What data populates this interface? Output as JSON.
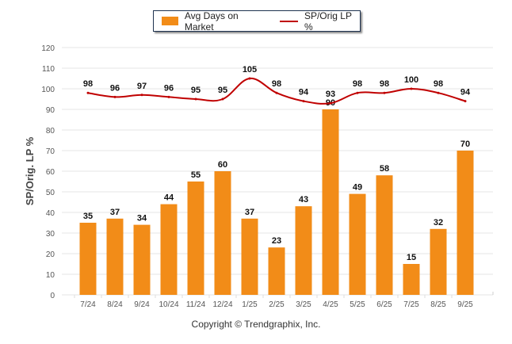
{
  "legend": {
    "bar_label": "Avg Days on Market",
    "line_label": "SP/Orig LP %"
  },
  "copyright": "Copyright © Trendgraphix, Inc.",
  "colors": {
    "bar": "#f28c18",
    "line": "#c00000",
    "grid": "#e6e6e6",
    "axis_text": "#555555"
  },
  "chart_data": {
    "type": "bar+line",
    "categories": [
      "7/24",
      "8/24",
      "9/24",
      "10/24",
      "11/24",
      "12/24",
      "1/25",
      "2/25",
      "3/25",
      "4/25",
      "5/25",
      "6/25",
      "7/25",
      "8/25",
      "9/25"
    ],
    "series": [
      {
        "name": "Avg Days on Market",
        "type": "bar",
        "values": [
          35,
          37,
          34,
          44,
          55,
          60,
          37,
          23,
          43,
          90,
          49,
          58,
          15,
          32,
          70
        ]
      },
      {
        "name": "SP/Orig LP %",
        "type": "line",
        "values": [
          98,
          96,
          97,
          96,
          95,
          95,
          105,
          98,
          94,
          93,
          98,
          98,
          100,
          98,
          94
        ]
      }
    ],
    "ylabel": "SP/Orig. LP %",
    "ylim": [
      0,
      120
    ],
    "yticks": [
      "0",
      "10",
      "20",
      "30",
      "40",
      "50",
      "60",
      "70",
      "80",
      "90",
      "100",
      "110",
      "120"
    ],
    "grid": true,
    "legend_position": "top"
  }
}
